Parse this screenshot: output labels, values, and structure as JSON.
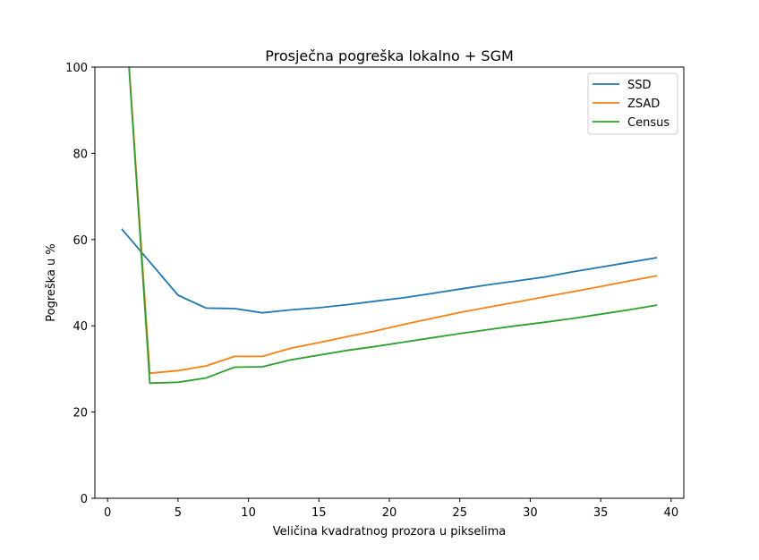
{
  "chart_data": {
    "type": "line",
    "title": "Prosječna pogreška lokalno + SGM",
    "xlabel": "Veličina kvadratnog prozora u pikselima",
    "ylabel": "Pogreška u %",
    "xlim": [
      -0.9,
      40.9
    ],
    "ylim": [
      0,
      100
    ],
    "xticks": [
      0,
      5,
      10,
      15,
      20,
      25,
      30,
      35,
      40
    ],
    "yticks": [
      0,
      20,
      40,
      60,
      80,
      100
    ],
    "grid": false,
    "legend_position": "top-right",
    "x": [
      1,
      3,
      5,
      7,
      9,
      11,
      13,
      15,
      17,
      19,
      21,
      23,
      25,
      27,
      29,
      31,
      33,
      35,
      37,
      39
    ],
    "series": [
      {
        "name": "SSD",
        "color": "#1f77b4",
        "values": [
          62.5,
          54.8,
          47.1,
          44.1,
          44.0,
          43.0,
          43.7,
          44.2,
          44.9,
          45.7,
          46.5,
          47.5,
          48.5,
          49.5,
          50.4,
          51.3,
          52.5,
          53.6,
          54.7,
          55.8
        ]
      },
      {
        "name": "ZSAD",
        "color": "#ff7f0e",
        "values": [
          126,
          29.0,
          29.6,
          30.7,
          32.9,
          32.9,
          34.8,
          36.1,
          37.5,
          38.8,
          40.3,
          41.7,
          43.1,
          44.3,
          45.5,
          46.7,
          47.9,
          49.1,
          50.4,
          51.6
        ]
      },
      {
        "name": "Census",
        "color": "#2ca02c",
        "values": [
          126,
          26.7,
          26.9,
          27.9,
          30.4,
          30.5,
          32.1,
          33.2,
          34.3,
          35.2,
          36.2,
          37.2,
          38.2,
          39.1,
          40.0,
          40.8,
          41.7,
          42.7,
          43.7,
          44.8
        ]
      }
    ]
  }
}
